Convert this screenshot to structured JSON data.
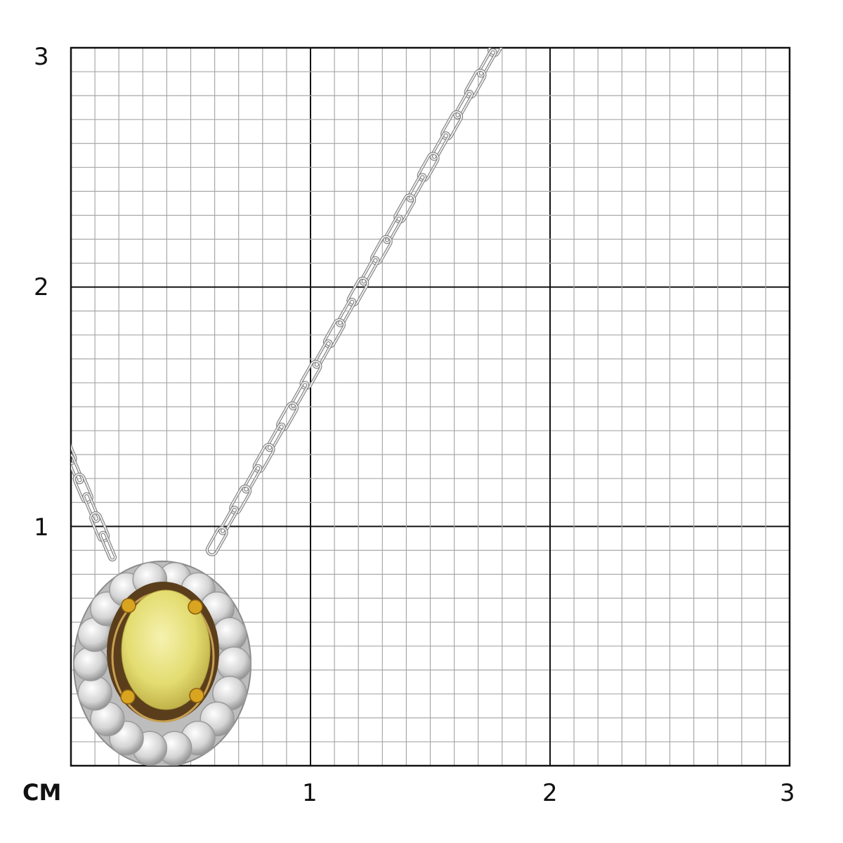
{
  "scale": {
    "unit_label": "CM",
    "y_labels": [
      "3",
      "2",
      "1"
    ],
    "x_labels": [
      "1",
      "2",
      "3"
    ],
    "range_cm": [
      0,
      3
    ],
    "minor_divisions_per_cm": 10
  },
  "product": {
    "type": "pendant-necklace",
    "center_stone_color": "#e8e27a",
    "prong_color": "#d9a520",
    "metal_color": "#c8c8c8",
    "halo_stone_count": 18
  }
}
